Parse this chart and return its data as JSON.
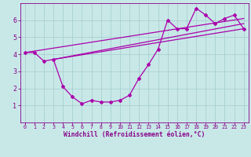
{
  "background_color": "#c8e8e8",
  "grid_color": "#a8d0d0",
  "line_color": "#aa00aa",
  "marker_color": "#aa00aa",
  "xlabel": "Windchill (Refroidissement éolien,°C)",
  "xlim": [
    -0.5,
    23.5
  ],
  "ylim": [
    0,
    7
  ],
  "yticks": [
    1,
    2,
    3,
    4,
    5,
    6
  ],
  "xticks": [
    0,
    1,
    2,
    3,
    4,
    5,
    6,
    7,
    8,
    9,
    10,
    11,
    12,
    13,
    14,
    15,
    16,
    17,
    18,
    19,
    20,
    21,
    22,
    23
  ],
  "series1_x": [
    0,
    1,
    2,
    3,
    4,
    5,
    6,
    7,
    8,
    9,
    10,
    11,
    12,
    13,
    14,
    15,
    16,
    17,
    18,
    19,
    20,
    21,
    22,
    23
  ],
  "series1_y": [
    4.1,
    4.1,
    3.6,
    3.7,
    2.1,
    1.5,
    1.1,
    1.3,
    1.2,
    1.2,
    1.3,
    1.6,
    2.6,
    3.4,
    4.3,
    6.0,
    5.5,
    5.5,
    6.7,
    6.3,
    5.8,
    6.1,
    6.3,
    5.5
  ],
  "series2_x": [
    3,
    23
  ],
  "series2_y": [
    3.7,
    5.5
  ],
  "series3_x": [
    3,
    23
  ],
  "series3_y": [
    3.7,
    5.8
  ],
  "series4_x": [
    0,
    23
  ],
  "series4_y": [
    4.1,
    6.1
  ],
  "tick_color": "#880088",
  "axis_color": "#880088",
  "xlabel_fontsize": 5.8,
  "tick_fontsize_x": 4.8,
  "tick_fontsize_y": 6.0
}
